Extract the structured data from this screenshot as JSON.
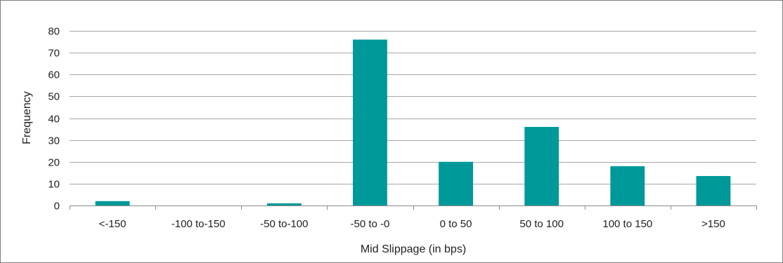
{
  "chart_data": {
    "type": "bar",
    "categories": [
      "<-150",
      "-100 to-150",
      "-50 to-100",
      "-50 to -0",
      "0 to 50",
      "50 to 100",
      "100 to 150",
      ">150"
    ],
    "values": [
      2,
      0,
      1,
      76,
      20,
      36,
      18,
      13.5
    ],
    "xlabel": "Mid Slippage (in bps)",
    "ylabel": "Frequency",
    "ylim": [
      0,
      80
    ],
    "yticks": [
      0,
      10,
      20,
      30,
      40,
      50,
      60,
      70,
      80
    ],
    "grid": true,
    "legend": "none",
    "colors": {
      "bar": "#009999",
      "grid": "#a6a6a6",
      "axis": "#8c8c8c"
    }
  }
}
